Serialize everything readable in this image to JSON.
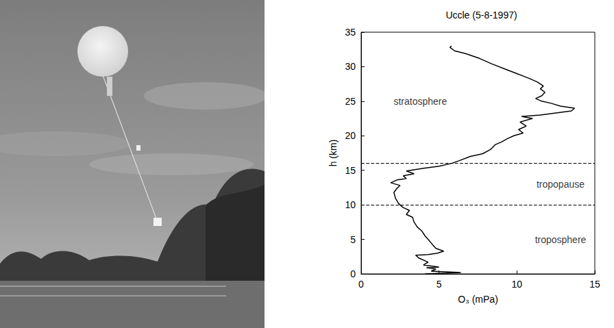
{
  "chart_data": {
    "type": "line",
    "title": "Uccle (5-8-1997)",
    "x_label": "O₃ (mPa)",
    "y_label": "h (km)",
    "xlim": [
      0,
      15
    ],
    "xticks": [
      0,
      5,
      10,
      15
    ],
    "ylim": [
      0,
      35
    ],
    "yticks": [
      0,
      5,
      10,
      15,
      20,
      25,
      30,
      35
    ],
    "grid": false,
    "color": "#000000",
    "line_style": "solid",
    "x": [
      4.1,
      6.4,
      4.5,
      4.8,
      4.2,
      5.0,
      4.0,
      4.3,
      3.7,
      3.5,
      4.3,
      4.9,
      5.3,
      4.8,
      4.6,
      4.3,
      4.1,
      3.9,
      3.6,
      3.4,
      3.3,
      2.9,
      3.1,
      2.7,
      2.4,
      2.2,
      2.1,
      2.3,
      2.5,
      1.9,
      2.3,
      2.9,
      2.7,
      3.4,
      2.9,
      4.0,
      5.0,
      5.8,
      6.3,
      7.0,
      7.8,
      8.3,
      8.6,
      9.0,
      9.4,
      9.8,
      10.4,
      10.1,
      10.6,
      10.2,
      11.0,
      10.3,
      11.5,
      12.5,
      13.5,
      13.7,
      12.8,
      12.2,
      11.6,
      11.2,
      11.6,
      11.8,
      11.5,
      11.7,
      11.3,
      10.8,
      10.0,
      9.2,
      8.4,
      7.6,
      6.7,
      6.0,
      5.7,
      5.8
    ],
    "y": [
      0,
      0.2,
      0.4,
      0.7,
      0.9,
      1.0,
      1.3,
      1.7,
      2.3,
      2.7,
      2.8,
      3.0,
      3.3,
      3.7,
      4.2,
      5.0,
      5.5,
      6.2,
      6.8,
      7.5,
      8.2,
      8.6,
      9.2,
      9.6,
      10.2,
      11.0,
      11.8,
      12.4,
      12.8,
      13.2,
      13.6,
      13.8,
      14.2,
      14.5,
      14.9,
      15.3,
      15.6,
      16.0,
      16.4,
      17.0,
      17.4,
      18.0,
      18.7,
      19.1,
      19.6,
      20.0,
      20.4,
      20.9,
      21.4,
      22.0,
      22.5,
      22.8,
      23.0,
      23.3,
      23.6,
      24.0,
      24.3,
      24.7,
      25.0,
      25.4,
      25.8,
      26.3,
      26.8,
      27.2,
      27.8,
      28.3,
      29.0,
      29.7,
      30.4,
      31.2,
      31.9,
      32.3,
      32.8,
      33.0
    ],
    "hlines": {
      "values": [
        16,
        10
      ],
      "line_style": "dashed"
    },
    "annotations": [
      {
        "text": "stratosphere",
        "x": 3.8,
        "y": 25
      },
      {
        "text": "tropopause",
        "x": 12.8,
        "y": 13
      },
      {
        "text": "troposphere",
        "x": 12.8,
        "y": 5
      }
    ]
  }
}
